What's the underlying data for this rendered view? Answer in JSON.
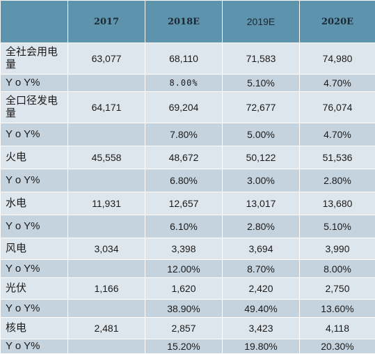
{
  "header": {
    "label_column": "",
    "years": [
      "2017",
      "2018E",
      "2019E",
      "2020E"
    ]
  },
  "rows": [
    {
      "label": "全社会用电量",
      "values": [
        "63,077",
        "68,110",
        "71,583",
        "74,980"
      ]
    },
    {
      "label": "Y o Y%",
      "values": [
        "",
        "8.00%",
        "5.10%",
        "4.70%"
      ]
    },
    {
      "label": "全口径发电量",
      "values": [
        "64,171",
        "69,204",
        "72,677",
        "76,074"
      ]
    },
    {
      "label": "Y o Y%",
      "values": [
        "",
        "7.80%",
        "5.00%",
        "4.70%"
      ]
    },
    {
      "label": "火电",
      "values": [
        "45,558",
        "48,672",
        "50,122",
        "51,536"
      ]
    },
    {
      "label": "Y o Y%",
      "values": [
        "",
        "6.80%",
        "3.00%",
        "2.80%"
      ]
    },
    {
      "label": "水电",
      "values": [
        "11,931",
        "12,657",
        "13,017",
        "13,680"
      ]
    },
    {
      "label": "Y o Y%",
      "values": [
        "",
        "6.10%",
        "2.80%",
        "5.10%"
      ]
    },
    {
      "label": "风电",
      "values": [
        "3,034",
        "3,398",
        "3,694",
        "3,990"
      ]
    },
    {
      "label": "Y o Y%",
      "values": [
        "",
        "12.00%",
        "8.70%",
        "8.00%"
      ]
    },
    {
      "label": "光伏",
      "values": [
        "1,166",
        "1,620",
        "2,420",
        "2,750"
      ]
    },
    {
      "label": "Y o Y%",
      "values": [
        "",
        "38.90%",
        "49.40%",
        "13.60%"
      ]
    },
    {
      "label": "核电",
      "values": [
        "2,481",
        "2,857",
        "3,423",
        "4,118"
      ]
    },
    {
      "label": "Y o Y%",
      "values": [
        "",
        "15.20%",
        "19.80%",
        "20.30%"
      ]
    }
  ],
  "colors": {
    "header_bg": "#5d93ad",
    "row_light": "#dee6ed",
    "row_dark": "#c5d3de"
  }
}
